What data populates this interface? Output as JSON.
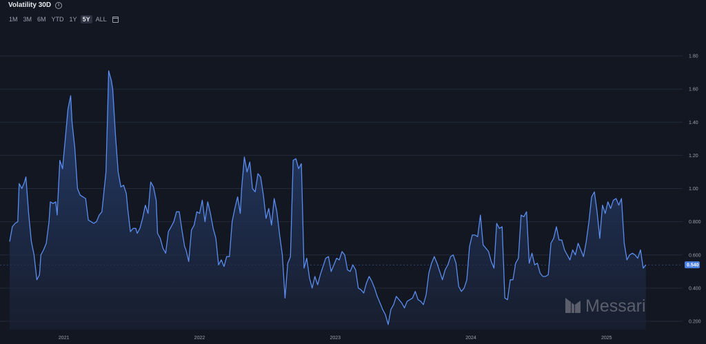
{
  "header": {
    "title": "Volatility 30D",
    "info_icon": "info-circle-icon"
  },
  "ranges": [
    {
      "label": "1M",
      "active": false
    },
    {
      "label": "3M",
      "active": false
    },
    {
      "label": "6M",
      "active": false
    },
    {
      "label": "YTD",
      "active": false
    },
    {
      "label": "1Y",
      "active": false
    },
    {
      "label": "5Y",
      "active": true
    },
    {
      "label": "ALL",
      "active": false
    }
  ],
  "calendar_icon": "calendar-icon",
  "watermark": {
    "text": "Messari",
    "icon": "messari-logo-icon"
  },
  "colors": {
    "background": "#131722",
    "line": "#5b8def",
    "grid": "#232a3a",
    "badge": "#4a7fe0"
  },
  "chart_data": {
    "type": "area",
    "title": "Volatility 30D",
    "xlabel": "",
    "ylabel": "",
    "grid": true,
    "y_axis_position": "right",
    "ylim": [
      0.15,
      1.95
    ],
    "y_ticks": [
      "0.200",
      "0.400",
      "0.600",
      "0.800",
      "1.00",
      "1.20",
      "1.40",
      "1.60",
      "1.80"
    ],
    "x_ticks": [
      "2021",
      "2022",
      "2023",
      "2024",
      "2025"
    ],
    "x_range": [
      2020.6,
      2025.55
    ],
    "last_value": "0.540",
    "points": [
      [
        2020.6,
        0.68
      ],
      [
        2020.62,
        0.77
      ],
      [
        2020.64,
        0.79
      ],
      [
        2020.66,
        0.8
      ],
      [
        2020.67,
        1.03
      ],
      [
        2020.69,
        1.0
      ],
      [
        2020.71,
        1.04
      ],
      [
        2020.72,
        1.07
      ],
      [
        2020.74,
        0.85
      ],
      [
        2020.76,
        0.68
      ],
      [
        2020.78,
        0.6
      ],
      [
        2020.8,
        0.45
      ],
      [
        2020.82,
        0.48
      ],
      [
        2020.83,
        0.6
      ],
      [
        2020.85,
        0.63
      ],
      [
        2020.87,
        0.67
      ],
      [
        2020.89,
        0.8
      ],
      [
        2020.9,
        0.92
      ],
      [
        2020.92,
        0.91
      ],
      [
        2020.94,
        0.92
      ],
      [
        2020.95,
        0.84
      ],
      [
        2020.97,
        1.17
      ],
      [
        2020.99,
        1.12
      ],
      [
        2021.01,
        1.3
      ],
      [
        2021.03,
        1.48
      ],
      [
        2021.05,
        1.56
      ],
      [
        2021.06,
        1.4
      ],
      [
        2021.08,
        1.25
      ],
      [
        2021.1,
        1.0
      ],
      [
        2021.12,
        0.96
      ],
      [
        2021.14,
        0.95
      ],
      [
        2021.16,
        0.94
      ],
      [
        2021.18,
        0.81
      ],
      [
        2021.2,
        0.8
      ],
      [
        2021.22,
        0.79
      ],
      [
        2021.24,
        0.8
      ],
      [
        2021.26,
        0.84
      ],
      [
        2021.28,
        0.86
      ],
      [
        2021.31,
        1.1
      ],
      [
        2021.32,
        1.4
      ],
      [
        2021.33,
        1.71
      ],
      [
        2021.35,
        1.65
      ],
      [
        2021.36,
        1.6
      ],
      [
        2021.38,
        1.32
      ],
      [
        2021.4,
        1.1
      ],
      [
        2021.42,
        1.01
      ],
      [
        2021.44,
        1.02
      ],
      [
        2021.46,
        0.97
      ],
      [
        2021.47,
        0.88
      ],
      [
        2021.49,
        0.74
      ],
      [
        2021.51,
        0.76
      ],
      [
        2021.53,
        0.76
      ],
      [
        2021.54,
        0.73
      ],
      [
        2021.56,
        0.76
      ],
      [
        2021.58,
        0.82
      ],
      [
        2021.6,
        0.9
      ],
      [
        2021.62,
        0.85
      ],
      [
        2021.64,
        1.04
      ],
      [
        2021.66,
        1.01
      ],
      [
        2021.68,
        0.93
      ],
      [
        2021.69,
        0.73
      ],
      [
        2021.71,
        0.7
      ],
      [
        2021.73,
        0.64
      ],
      [
        2021.75,
        0.61
      ],
      [
        2021.77,
        0.74
      ],
      [
        2021.79,
        0.77
      ],
      [
        2021.81,
        0.8
      ],
      [
        2021.83,
        0.86
      ],
      [
        2021.85,
        0.86
      ],
      [
        2021.87,
        0.75
      ],
      [
        2021.89,
        0.65
      ],
      [
        2021.9,
        0.63
      ],
      [
        2021.92,
        0.56
      ],
      [
        2021.94,
        0.75
      ],
      [
        2021.96,
        0.78
      ],
      [
        2021.98,
        0.86
      ],
      [
        2022.0,
        0.85
      ],
      [
        2022.02,
        0.93
      ],
      [
        2022.04,
        0.8
      ],
      [
        2022.06,
        0.92
      ],
      [
        2022.08,
        0.85
      ],
      [
        2022.1,
        0.76
      ],
      [
        2022.12,
        0.7
      ],
      [
        2022.14,
        0.54
      ],
      [
        2022.16,
        0.57
      ],
      [
        2022.18,
        0.53
      ],
      [
        2022.2,
        0.59
      ],
      [
        2022.22,
        0.59
      ],
      [
        2022.24,
        0.8
      ],
      [
        2022.26,
        0.88
      ],
      [
        2022.28,
        0.95
      ],
      [
        2022.3,
        0.85
      ],
      [
        2022.31,
        1.0
      ],
      [
        2022.33,
        1.19
      ],
      [
        2022.35,
        1.1
      ],
      [
        2022.37,
        1.16
      ],
      [
        2022.39,
        1.0
      ],
      [
        2022.41,
        0.98
      ],
      [
        2022.43,
        1.09
      ],
      [
        2022.45,
        1.07
      ],
      [
        2022.47,
        0.96
      ],
      [
        2022.49,
        0.82
      ],
      [
        2022.51,
        0.88
      ],
      [
        2022.53,
        0.78
      ],
      [
        2022.55,
        0.94
      ],
      [
        2022.57,
        0.86
      ],
      [
        2022.59,
        0.72
      ],
      [
        2022.61,
        0.6
      ],
      [
        2022.63,
        0.34
      ],
      [
        2022.65,
        0.55
      ],
      [
        2022.67,
        0.59
      ],
      [
        2022.69,
        1.17
      ],
      [
        2022.71,
        1.18
      ],
      [
        2022.73,
        1.12
      ],
      [
        2022.75,
        1.15
      ],
      [
        2022.77,
        0.52
      ],
      [
        2022.79,
        0.58
      ],
      [
        2022.81,
        0.46
      ],
      [
        2022.83,
        0.4
      ],
      [
        2022.85,
        0.47
      ],
      [
        2022.87,
        0.42
      ],
      [
        2022.89,
        0.48
      ],
      [
        2022.91,
        0.53
      ],
      [
        2022.93,
        0.58
      ],
      [
        2022.95,
        0.59
      ],
      [
        2022.97,
        0.5
      ],
      [
        2022.99,
        0.54
      ],
      [
        2023.01,
        0.58
      ],
      [
        2023.03,
        0.57
      ],
      [
        2023.05,
        0.62
      ],
      [
        2023.07,
        0.6
      ],
      [
        2023.09,
        0.51
      ],
      [
        2023.11,
        0.5
      ],
      [
        2023.13,
        0.54
      ],
      [
        2023.15,
        0.51
      ],
      [
        2023.17,
        0.4
      ],
      [
        2023.19,
        0.39
      ],
      [
        2023.21,
        0.37
      ],
      [
        2023.23,
        0.43
      ],
      [
        2023.25,
        0.47
      ],
      [
        2023.27,
        0.44
      ],
      [
        2023.29,
        0.4
      ],
      [
        2023.31,
        0.35
      ],
      [
        2023.33,
        0.31
      ],
      [
        2023.35,
        0.27
      ],
      [
        2023.37,
        0.24
      ],
      [
        2023.39,
        0.18
      ],
      [
        2023.41,
        0.27
      ],
      [
        2023.43,
        0.3
      ],
      [
        2023.45,
        0.35
      ],
      [
        2023.47,
        0.33
      ],
      [
        2023.49,
        0.31
      ],
      [
        2023.51,
        0.28
      ],
      [
        2023.53,
        0.32
      ],
      [
        2023.55,
        0.33
      ],
      [
        2023.57,
        0.34
      ],
      [
        2023.59,
        0.38
      ],
      [
        2023.61,
        0.33
      ],
      [
        2023.63,
        0.32
      ],
      [
        2023.65,
        0.3
      ],
      [
        2023.67,
        0.36
      ],
      [
        2023.69,
        0.49
      ],
      [
        2023.71,
        0.55
      ],
      [
        2023.73,
        0.59
      ],
      [
        2023.75,
        0.55
      ],
      [
        2023.77,
        0.5
      ],
      [
        2023.79,
        0.45
      ],
      [
        2023.81,
        0.51
      ],
      [
        2023.83,
        0.54
      ],
      [
        2023.85,
        0.59
      ],
      [
        2023.87,
        0.6
      ],
      [
        2023.89,
        0.55
      ],
      [
        2023.91,
        0.41
      ],
      [
        2023.93,
        0.38
      ],
      [
        2023.95,
        0.4
      ],
      [
        2023.97,
        0.45
      ],
      [
        2023.99,
        0.65
      ],
      [
        2024.01,
        0.72
      ],
      [
        2024.03,
        0.72
      ],
      [
        2024.05,
        0.71
      ],
      [
        2024.07,
        0.84
      ],
      [
        2024.09,
        0.66
      ],
      [
        2024.11,
        0.64
      ],
      [
        2024.13,
        0.62
      ],
      [
        2024.15,
        0.56
      ],
      [
        2024.17,
        0.52
      ],
      [
        2024.19,
        0.79
      ],
      [
        2024.21,
        0.76
      ],
      [
        2024.23,
        0.77
      ],
      [
        2024.25,
        0.34
      ],
      [
        2024.27,
        0.33
      ],
      [
        2024.29,
        0.45
      ],
      [
        2024.31,
        0.45
      ],
      [
        2024.33,
        0.55
      ],
      [
        2024.35,
        0.58
      ],
      [
        2024.37,
        0.84
      ],
      [
        2024.39,
        0.83
      ],
      [
        2024.41,
        0.86
      ],
      [
        2024.43,
        0.55
      ],
      [
        2024.45,
        0.61
      ],
      [
        2024.47,
        0.54
      ],
      [
        2024.49,
        0.55
      ],
      [
        2024.51,
        0.49
      ],
      [
        2024.53,
        0.47
      ],
      [
        2024.55,
        0.47
      ],
      [
        2024.57,
        0.48
      ],
      [
        2024.59,
        0.67
      ],
      [
        2024.61,
        0.7
      ],
      [
        2024.63,
        0.77
      ],
      [
        2024.65,
        0.69
      ],
      [
        2024.67,
        0.69
      ],
      [
        2024.69,
        0.63
      ],
      [
        2024.71,
        0.6
      ],
      [
        2024.73,
        0.57
      ],
      [
        2024.75,
        0.63
      ],
      [
        2024.77,
        0.6
      ],
      [
        2024.79,
        0.67
      ],
      [
        2024.81,
        0.63
      ],
      [
        2024.83,
        0.59
      ],
      [
        2024.85,
        0.68
      ],
      [
        2024.87,
        0.8
      ],
      [
        2024.89,
        0.95
      ],
      [
        2024.91,
        0.98
      ],
      [
        2024.93,
        0.86
      ],
      [
        2024.95,
        0.7
      ],
      [
        2024.97,
        0.9
      ],
      [
        2024.99,
        0.85
      ],
      [
        2025.01,
        0.92
      ],
      [
        2025.03,
        0.88
      ],
      [
        2025.05,
        0.93
      ],
      [
        2025.07,
        0.94
      ],
      [
        2025.09,
        0.9
      ],
      [
        2025.11,
        0.94
      ],
      [
        2025.13,
        0.67
      ],
      [
        2025.15,
        0.57
      ],
      [
        2025.17,
        0.6
      ],
      [
        2025.19,
        0.61
      ],
      [
        2025.21,
        0.6
      ],
      [
        2025.23,
        0.58
      ],
      [
        2025.25,
        0.63
      ],
      [
        2025.27,
        0.52
      ],
      [
        2025.29,
        0.54
      ]
    ]
  }
}
